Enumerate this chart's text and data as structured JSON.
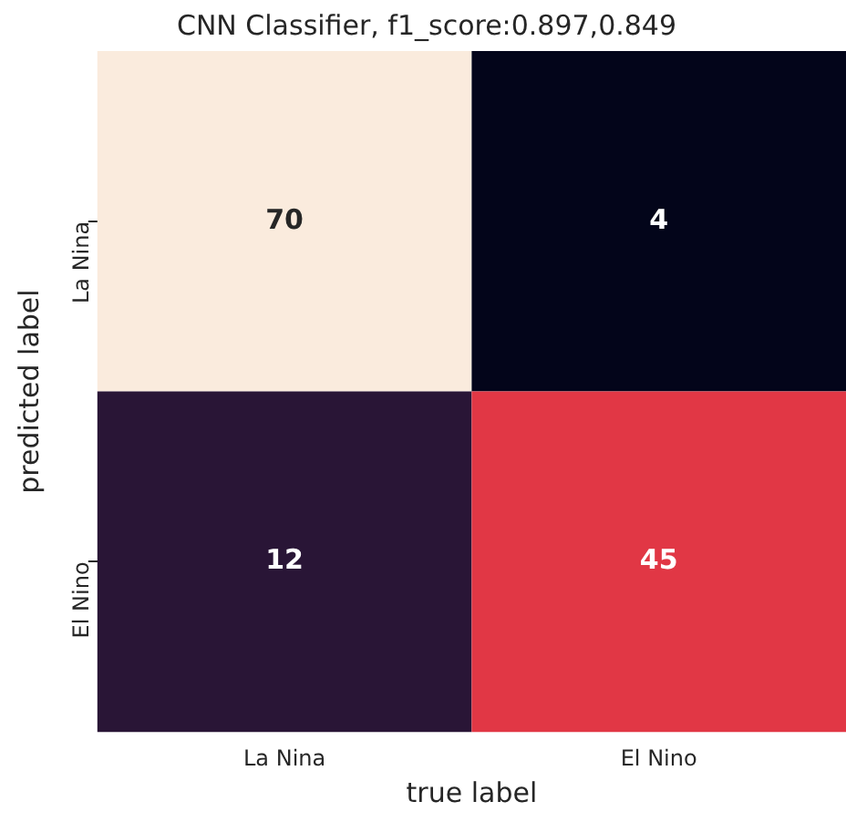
{
  "chart_data": {
    "type": "heatmap",
    "title": "CNN Classifier, f1_score:0.897,0.849",
    "xlabel": "true label",
    "ylabel": "predicted label",
    "categories": [
      "La Nina",
      "El Nino"
    ],
    "y_categories": [
      "La Nina",
      "El Nino"
    ],
    "cells": [
      [
        70,
        4
      ],
      [
        12,
        45
      ]
    ],
    "data_labels": true
  }
}
